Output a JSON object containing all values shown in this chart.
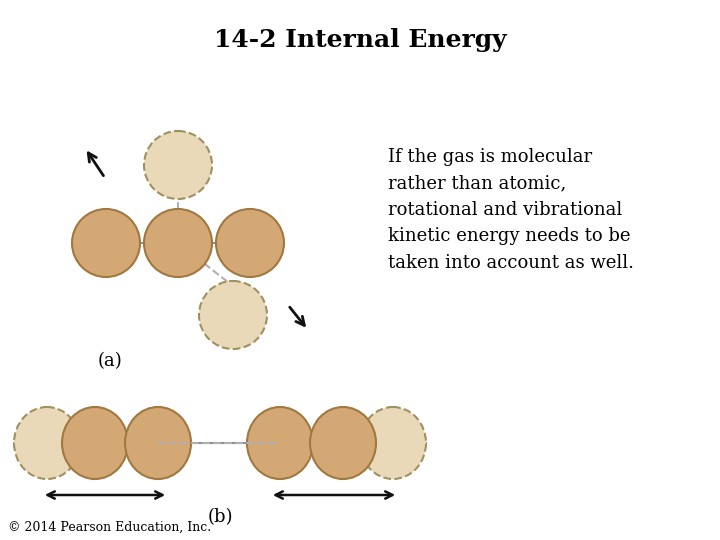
{
  "title": "14-2 Internal Energy",
  "title_fontsize": 18,
  "title_fontweight": "bold",
  "body_text": "If the gas is molecular\nrather than atomic,\nrotational and vibrational\nkinetic energy needs to be\ntaken into account as well.",
  "body_text_fontsize": 13,
  "label_a": "(a)",
  "label_b": "(b)",
  "label_fontsize": 13,
  "copyright": "© 2014 Pearson Education, Inc.",
  "copyright_fontsize": 9,
  "background_color": "#ffffff",
  "sphere_color": "#d4a875",
  "sphere_edge_color": "#a07840",
  "ghost_color": "#ead9b8",
  "ghost_edge_color": "#a09060",
  "line_color": "#909090",
  "dashed_line_color": "#b0b0b0",
  "arrow_color": "#111111"
}
